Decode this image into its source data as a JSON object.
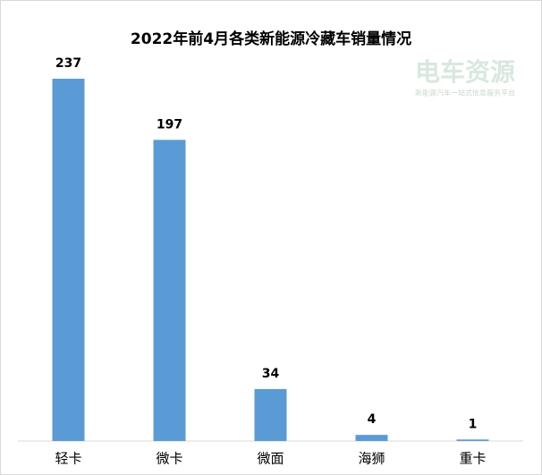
{
  "chart_data": {
    "type": "bar",
    "title": "2022年前4月各类新能源冷藏车销量情况",
    "categories": [
      "轻卡",
      "微卡",
      "微面",
      "海狮",
      "重卡"
    ],
    "values": [
      237,
      197,
      34,
      4,
      1
    ],
    "color": "#5b9bd5"
  },
  "watermark": {
    "title": "电车资源",
    "subtitle": "新能源汽车一站式信息服务平台"
  }
}
